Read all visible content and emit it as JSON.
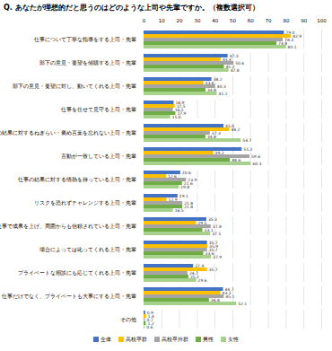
{
  "chart_data": {
    "type": "bar",
    "orientation": "horizontal",
    "title": "Q. あなたが理想的だと思うのはどのような上司や先輩ですか。（複数選択可）",
    "categories": [
      "仕事について丁寧な指導をする上司・先輩",
      "部下の意見・要望を傾聴する上司・先輩",
      "部下の意見・要望に対し、動いてくれる上司・先輩",
      "仕事を任せて見守る上司・先輩",
      "仕事の結果に対するねぎらい・褒め言葉を忘れない上司・先輩",
      "言動が一致している上司・先輩",
      "仕事の結果に対する情熱を持っている上司・先輩",
      "リスクを恐れずチャレンジする上司・先輩",
      "仕事で成果を上げ、周囲からも信頼されている上司・先輩",
      "場合によっては叱ってくれる上司・先輩",
      "プライベートな相談にも応じてくれる上司・先輩",
      "仕事だけでなく、プライベートも大事にする上司・先輩",
      "その他"
    ],
    "series": [
      {
        "name": "全体",
        "color": "#4472C4",
        "values": [
          79.0,
          47.3,
          38.2,
          16.9,
          45.0,
          55.2,
          20.6,
          19.1,
          35.3,
          35.7,
          27.9,
          44.7,
          0.9
        ],
        "value_labels": [
          "79.0",
          "47.3",
          "38.2",
          "16.9",
          "45.0",
          "55.2",
          "20.6",
          "19.1",
          "35.3",
          "35.7",
          "27.9",
          "44.7",
          "0.9"
        ]
      },
      {
        "name": "高校卒群",
        "color": "#FFC000",
        "values": [
          82.9,
          43.4,
          33.6,
          17.5,
          48.2,
          39.2,
          12.6,
          12.9,
          29.5,
          35.9,
          35.7,
          43.2,
          1.4
        ],
        "value_labels": [
          "82.9",
          "43.4",
          "33.6",
          "17.5",
          "48.2",
          "39.2",
          "12.6",
          "12.9",
          "29.5",
          "35.9",
          "35.7",
          "43.2",
          "1.4"
        ]
      },
      {
        "name": "高校卒外群",
        "color": "#A5A5A5",
        "values": [
          78.3,
          50.6,
          40.3,
          16.5,
          37.3,
          59.6,
          23.9,
          21.8,
          37.8,
          35.7,
          24.7,
          45.1,
          0.7
        ],
        "value_labels": [
          "78.3",
          "50.6",
          "40.3",
          "16.5",
          "37.3",
          "59.6",
          "23.9",
          "21.8",
          "37.8",
          "35.7",
          "24.7",
          "45.1",
          "0.7"
        ]
      },
      {
        "name": "男性",
        "color": "#70AD47",
        "values": [
          74.8,
          45.2,
          34.8,
          17.9,
          34.8,
          48.6,
          21.6,
          21.8,
          33.1,
          33.6,
          25.2,
          36.8,
          1.2
        ],
        "value_labels": [
          "74.8",
          "45.2",
          "34.8",
          "17.9",
          "34.8",
          "48.6",
          "21.6",
          "21.8",
          "33.1",
          "33.6",
          "25.2",
          "36.8",
          "1.2"
        ]
      },
      {
        "name": "女性",
        "color": "#A9D18E",
        "values": [
          80.1,
          47.8,
          41.2,
          15.0,
          54.7,
          60.3,
          19.8,
          16.5,
          37.5,
          37.9,
          29.6,
          52.1,
          0.6
        ],
        "value_labels": [
          "80.1",
          "47.8",
          "41.2",
          "15.0",
          "54.7",
          "60.3",
          "19.8",
          "16.5",
          "37.5",
          "37.9",
          "29.6",
          "52.1",
          "0.6"
        ]
      }
    ],
    "xlim": [
      0,
      100
    ],
    "xticks": [
      0,
      10,
      20,
      30,
      40,
      50,
      60,
      70,
      80,
      90,
      100
    ],
    "grid": true,
    "data_labels": true,
    "legend": "bottom"
  }
}
